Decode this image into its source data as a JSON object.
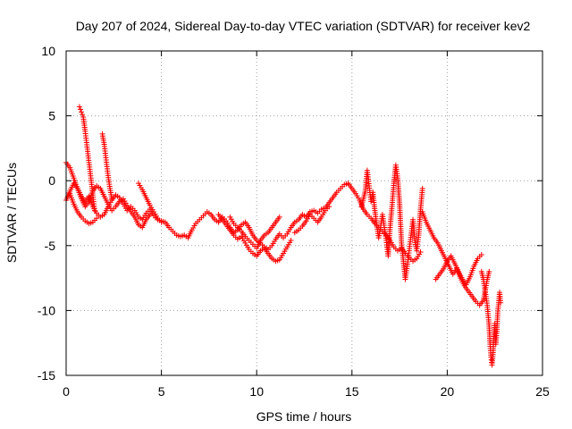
{
  "chart_data": {
    "type": "scatter",
    "title": "Day 207 of 2024, Sidereal Day-to-day VTEC variation (SDTVAR) for receiver kev2",
    "xlabel": "GPS time / hours",
    "ylabel": "SDTVAR / TECUs",
    "xlim": [
      0,
      25
    ],
    "ylim": [
      -15,
      10
    ],
    "xticks": [
      "0",
      "5",
      "10",
      "15",
      "20",
      "25"
    ],
    "yticks": [
      "-15",
      "-10",
      "-5",
      "0",
      "5",
      "10"
    ],
    "grid": true,
    "marker": "+",
    "color": "#ff0000",
    "series": [
      {
        "name": "satellite-track-1",
        "points": [
          [
            0.0,
            -1.5
          ],
          [
            0.2,
            -0.8
          ],
          [
            0.4,
            -0.2
          ],
          [
            0.6,
            -0.6
          ],
          [
            0.8,
            -1.2
          ],
          [
            1.0,
            -1.6
          ],
          [
            1.2,
            -1.2
          ],
          [
            1.4,
            -2.0
          ],
          [
            1.6,
            -2.5
          ],
          [
            1.8,
            -2.8
          ],
          [
            2.0,
            -2.6
          ],
          [
            2.2,
            -2.0
          ],
          [
            2.4,
            -1.5
          ],
          [
            2.6,
            -1.1
          ],
          [
            2.8,
            -1.3
          ],
          [
            3.0,
            -1.8
          ],
          [
            3.2,
            -2.3
          ],
          [
            3.4,
            -2.0
          ],
          [
            3.6,
            -2.3
          ],
          [
            3.8,
            -2.8
          ],
          [
            4.0,
            -3.0
          ],
          [
            4.2,
            -2.5
          ],
          [
            4.4,
            -2.2
          ],
          [
            4.6,
            -2.7
          ],
          [
            4.8,
            -3.0
          ],
          [
            5.0,
            -3.1
          ],
          [
            5.2,
            -3.2
          ],
          [
            5.4,
            -3.6
          ],
          [
            5.6,
            -3.9
          ],
          [
            5.8,
            -4.2
          ],
          [
            6.0,
            -4.3
          ],
          [
            6.2,
            -4.2
          ],
          [
            6.4,
            -4.4
          ],
          [
            6.6,
            -3.8
          ],
          [
            6.8,
            -3.3
          ],
          [
            7.0,
            -3.0
          ],
          [
            7.2,
            -2.7
          ],
          [
            7.4,
            -2.4
          ],
          [
            7.6,
            -2.6
          ],
          [
            7.8,
            -3.0
          ],
          [
            8.0,
            -3.2
          ],
          [
            8.2,
            -2.8
          ],
          [
            8.4,
            -3.1
          ],
          [
            8.6,
            -3.6
          ],
          [
            8.8,
            -4.0
          ],
          [
            9.0,
            -3.8
          ],
          [
            9.2,
            -3.4
          ],
          [
            9.4,
            -3.2
          ],
          [
            9.6,
            -3.6
          ],
          [
            9.8,
            -4.2
          ],
          [
            10.0,
            -4.6
          ],
          [
            10.2,
            -4.8
          ],
          [
            10.4,
            -5.1
          ],
          [
            10.6,
            -5.3
          ],
          [
            10.8,
            -5.0
          ],
          [
            11.0,
            -4.5
          ],
          [
            11.2,
            -4.1
          ],
          [
            11.4,
            -4.4
          ],
          [
            11.6,
            -4.1
          ],
          [
            11.8,
            -3.6
          ],
          [
            12.0,
            -3.2
          ],
          [
            12.2,
            -3.0
          ],
          [
            12.4,
            -2.6
          ],
          [
            12.6,
            -2.8
          ],
          [
            12.8,
            -2.4
          ],
          [
            13.0,
            -2.3
          ],
          [
            13.2,
            -2.5
          ],
          [
            13.4,
            -2.2
          ],
          [
            13.6,
            -2.1
          ],
          [
            13.8,
            -1.7
          ],
          [
            14.0,
            -1.3
          ],
          [
            14.2,
            -0.9
          ],
          [
            14.4,
            -0.6
          ],
          [
            14.6,
            -0.3
          ],
          [
            14.8,
            -0.2
          ],
          [
            15.0,
            -0.6
          ],
          [
            15.2,
            -1.0
          ],
          [
            15.4,
            -1.5
          ],
          [
            15.6,
            -2.2
          ],
          [
            15.8,
            -2.6
          ],
          [
            16.0,
            -2.9
          ],
          [
            16.2,
            -3.3
          ],
          [
            16.4,
            -3.6
          ],
          [
            16.6,
            -3.9
          ],
          [
            16.8,
            -4.2
          ],
          [
            17.0,
            -4.6
          ],
          [
            17.2,
            -5.1
          ],
          [
            17.4,
            -5.4
          ],
          [
            17.6,
            -5.2
          ],
          [
            17.8,
            -5.6
          ],
          [
            18.0,
            -5.9
          ],
          [
            18.2,
            -6.2
          ],
          [
            18.4,
            -6.0
          ],
          [
            18.6,
            -5.5
          ]
        ]
      },
      {
        "name": "satellite-track-2",
        "points": [
          [
            0.0,
            1.4
          ],
          [
            0.2,
            1.0
          ],
          [
            0.4,
            0.2
          ],
          [
            0.6,
            -0.6
          ],
          [
            0.8,
            -1.4
          ],
          [
            1.0,
            -2.0
          ],
          [
            1.2,
            -1.6
          ],
          [
            1.4,
            -0.8
          ],
          [
            1.6,
            -0.4
          ],
          [
            1.8,
            -0.6
          ],
          [
            2.0,
            -1.2
          ],
          [
            2.2,
            -1.8
          ],
          [
            2.4,
            -2.3
          ],
          [
            2.6,
            -2.0
          ],
          [
            2.8,
            -1.6
          ],
          [
            3.0,
            -1.4
          ],
          [
            3.2,
            -1.9
          ],
          [
            3.4,
            -2.4
          ],
          [
            3.6,
            -2.8
          ],
          [
            3.8,
            -3.4
          ],
          [
            4.0,
            -3.6
          ],
          [
            4.2,
            -3.0
          ],
          [
            4.4,
            -2.6
          ]
        ]
      },
      {
        "name": "satellite-track-3",
        "points": [
          [
            0.7,
            5.7
          ],
          [
            0.8,
            5.3
          ],
          [
            0.9,
            4.9
          ],
          [
            1.0,
            3.8
          ],
          [
            1.1,
            2.6
          ],
          [
            1.2,
            1.4
          ],
          [
            1.3,
            0.2
          ],
          [
            1.4,
            -1.1
          ],
          [
            1.5,
            -2.3
          ]
        ]
      },
      {
        "name": "satellite-track-4",
        "points": [
          [
            1.9,
            3.6
          ],
          [
            2.0,
            2.8
          ],
          [
            2.1,
            1.6
          ],
          [
            2.2,
            0.4
          ],
          [
            2.3,
            -0.6
          ],
          [
            2.4,
            -1.4
          ]
        ]
      },
      {
        "name": "satellite-track-5",
        "points": [
          [
            0.2,
            -1.0
          ],
          [
            0.4,
            -1.8
          ],
          [
            0.6,
            -2.4
          ],
          [
            0.8,
            -2.8
          ],
          [
            1.0,
            -3.1
          ],
          [
            1.2,
            -3.3
          ],
          [
            1.4,
            -3.2
          ],
          [
            1.6,
            -2.9
          ]
        ]
      },
      {
        "name": "satellite-track-6",
        "points": [
          [
            3.8,
            -0.2
          ],
          [
            4.0,
            -0.7
          ],
          [
            4.2,
            -1.3
          ],
          [
            4.4,
            -1.9
          ],
          [
            4.6,
            -2.4
          ],
          [
            4.8,
            -2.9
          ],
          [
            5.0,
            -3.2
          ]
        ]
      },
      {
        "name": "satellite-track-7",
        "points": [
          [
            8.0,
            -2.6
          ],
          [
            8.2,
            -3.0
          ],
          [
            8.4,
            -3.4
          ],
          [
            8.6,
            -3.8
          ],
          [
            8.8,
            -4.2
          ],
          [
            9.0,
            -4.5
          ],
          [
            9.2,
            -4.3
          ],
          [
            9.4,
            -4.8
          ],
          [
            9.6,
            -5.3
          ],
          [
            9.8,
            -5.6
          ],
          [
            10.0,
            -5.8
          ],
          [
            10.2,
            -5.4
          ],
          [
            10.4,
            -5.2
          ],
          [
            10.6,
            -5.6
          ],
          [
            10.8,
            -6.0
          ],
          [
            11.0,
            -6.2
          ],
          [
            11.2,
            -6.1
          ],
          [
            11.4,
            -5.6
          ],
          [
            11.6,
            -5.1
          ],
          [
            11.8,
            -4.6
          ]
        ]
      },
      {
        "name": "satellite-track-8",
        "points": [
          [
            8.6,
            -2.8
          ],
          [
            8.8,
            -3.3
          ],
          [
            9.0,
            -3.6
          ],
          [
            9.2,
            -3.9
          ],
          [
            9.4,
            -4.3
          ],
          [
            9.6,
            -4.6
          ],
          [
            9.8,
            -4.9
          ],
          [
            10.0,
            -5.2
          ],
          [
            10.2,
            -4.6
          ],
          [
            10.4,
            -4.2
          ],
          [
            10.6,
            -4.0
          ],
          [
            10.8,
            -3.6
          ],
          [
            11.0,
            -3.2
          ],
          [
            11.2,
            -2.8
          ]
        ]
      },
      {
        "name": "satellite-track-9",
        "points": [
          [
            12.0,
            -4.0
          ],
          [
            12.2,
            -3.8
          ],
          [
            12.4,
            -3.5
          ],
          [
            12.6,
            -3.1
          ],
          [
            12.8,
            -2.6
          ],
          [
            13.0,
            -2.9
          ],
          [
            13.2,
            -3.2
          ],
          [
            13.4,
            -2.8
          ],
          [
            13.6,
            -2.3
          ],
          [
            13.8,
            -2.0
          ]
        ]
      },
      {
        "name": "satellite-track-10",
        "points": [
          [
            15.5,
            -2.0
          ],
          [
            15.7,
            -0.8
          ],
          [
            15.8,
            0.8
          ],
          [
            15.9,
            -0.4
          ],
          [
            16.0,
            -1.6
          ],
          [
            16.1,
            -0.9
          ],
          [
            16.2,
            -2.3
          ],
          [
            16.3,
            -3.4
          ],
          [
            16.4,
            -4.4
          ],
          [
            16.5,
            -3.6
          ],
          [
            16.6,
            -2.6
          ],
          [
            16.7,
            -3.6
          ],
          [
            16.8,
            -4.6
          ],
          [
            16.9,
            -5.8
          ],
          [
            17.0,
            -3.6
          ],
          [
            17.1,
            -2.0
          ],
          [
            17.2,
            -0.2
          ],
          [
            17.3,
            1.2
          ],
          [
            17.4,
            0.2
          ],
          [
            17.5,
            -1.8
          ],
          [
            17.6,
            -4.8
          ],
          [
            17.7,
            -6.2
          ],
          [
            17.8,
            -7.6
          ],
          [
            17.9,
            -6.6
          ],
          [
            18.0,
            -5.4
          ],
          [
            18.1,
            -4.2
          ],
          [
            18.2,
            -3.0
          ],
          [
            18.3,
            -4.6
          ],
          [
            18.4,
            -5.4
          ],
          [
            18.5,
            -4.2
          ],
          [
            18.6,
            -2.2
          ],
          [
            18.7,
            -0.6
          ]
        ]
      },
      {
        "name": "satellite-track-11",
        "points": [
          [
            18.7,
            -2.4
          ],
          [
            18.9,
            -3.2
          ],
          [
            19.1,
            -3.8
          ],
          [
            19.3,
            -4.4
          ],
          [
            19.5,
            -4.8
          ],
          [
            19.7,
            -5.4
          ],
          [
            19.9,
            -6.0
          ],
          [
            20.1,
            -6.6
          ],
          [
            20.3,
            -7.2
          ],
          [
            20.5,
            -6.8
          ],
          [
            20.7,
            -7.5
          ],
          [
            20.9,
            -8.1
          ],
          [
            21.1,
            -8.5
          ],
          [
            21.3,
            -8.9
          ],
          [
            21.5,
            -9.3
          ],
          [
            21.7,
            -9.6
          ],
          [
            21.9,
            -9.2
          ],
          [
            22.0,
            -8.4
          ],
          [
            22.1,
            -7.6
          ],
          [
            22.2,
            -7.0
          ]
        ]
      },
      {
        "name": "satellite-track-12",
        "points": [
          [
            19.4,
            -7.6
          ],
          [
            19.6,
            -7.2
          ],
          [
            19.8,
            -6.8
          ],
          [
            20.0,
            -6.2
          ],
          [
            20.2,
            -5.8
          ],
          [
            20.4,
            -6.4
          ],
          [
            20.6,
            -7.0
          ],
          [
            20.8,
            -7.6
          ],
          [
            21.0,
            -8.0
          ],
          [
            21.2,
            -7.4
          ],
          [
            21.4,
            -6.6
          ],
          [
            21.6,
            -6.0
          ],
          [
            21.8,
            -5.7
          ]
        ]
      },
      {
        "name": "satellite-track-13",
        "points": [
          [
            21.8,
            -7.0
          ],
          [
            21.9,
            -7.6
          ],
          [
            22.0,
            -8.6
          ],
          [
            22.1,
            -9.6
          ],
          [
            22.2,
            -11.2
          ],
          [
            22.25,
            -12.6
          ],
          [
            22.3,
            -13.6
          ],
          [
            22.35,
            -14.2
          ],
          [
            22.4,
            -13.4
          ],
          [
            22.45,
            -12.0
          ],
          [
            22.5,
            -11.0
          ],
          [
            22.55,
            -12.6
          ],
          [
            22.6,
            -11.6
          ],
          [
            22.65,
            -10.2
          ],
          [
            22.7,
            -9.4
          ],
          [
            22.75,
            -8.6
          ],
          [
            22.8,
            -9.4
          ]
        ]
      }
    ]
  }
}
